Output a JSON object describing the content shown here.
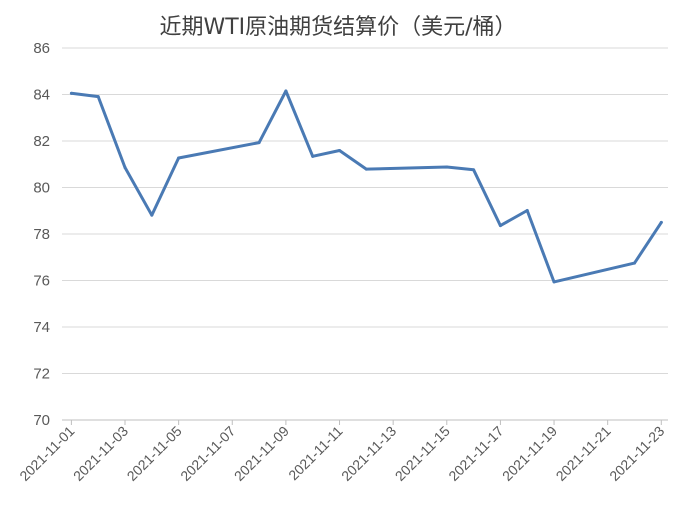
{
  "chart_data": {
    "type": "line",
    "title": "近期WTI原油期货结算价（美元/桶）",
    "xlabel": "",
    "ylabel": "",
    "ylim": [
      70,
      86
    ],
    "ytick_step": 2,
    "grid": true,
    "legend": "none",
    "x_range": [
      "2021-11-01",
      "2021-11-23"
    ],
    "x_ticks": [
      "2021-11-01",
      "2021-11-03",
      "2021-11-05",
      "2021-11-07",
      "2021-11-09",
      "2021-11-11",
      "2021-11-13",
      "2021-11-15",
      "2021-11-17",
      "2021-11-19",
      "2021-11-21",
      "2021-11-23"
    ],
    "series": [
      {
        "color": "#4a7ab4",
        "points": [
          {
            "x": "2021-11-01",
            "y": 84.05
          },
          {
            "x": "2021-11-02",
            "y": 83.91
          },
          {
            "x": "2021-11-03",
            "y": 80.86
          },
          {
            "x": "2021-11-04",
            "y": 78.81
          },
          {
            "x": "2021-11-05",
            "y": 81.27
          },
          {
            "x": "2021-11-08",
            "y": 81.93
          },
          {
            "x": "2021-11-09",
            "y": 84.15
          },
          {
            "x": "2021-11-10",
            "y": 81.34
          },
          {
            "x": "2021-11-11",
            "y": 81.59
          },
          {
            "x": "2021-11-12",
            "y": 80.79
          },
          {
            "x": "2021-11-15",
            "y": 80.88
          },
          {
            "x": "2021-11-16",
            "y": 80.76
          },
          {
            "x": "2021-11-17",
            "y": 78.36
          },
          {
            "x": "2021-11-18",
            "y": 79.01
          },
          {
            "x": "2021-11-19",
            "y": 75.94
          },
          {
            "x": "2021-11-22",
            "y": 76.75
          },
          {
            "x": "2021-11-23",
            "y": 78.5
          }
        ]
      }
    ]
  }
}
